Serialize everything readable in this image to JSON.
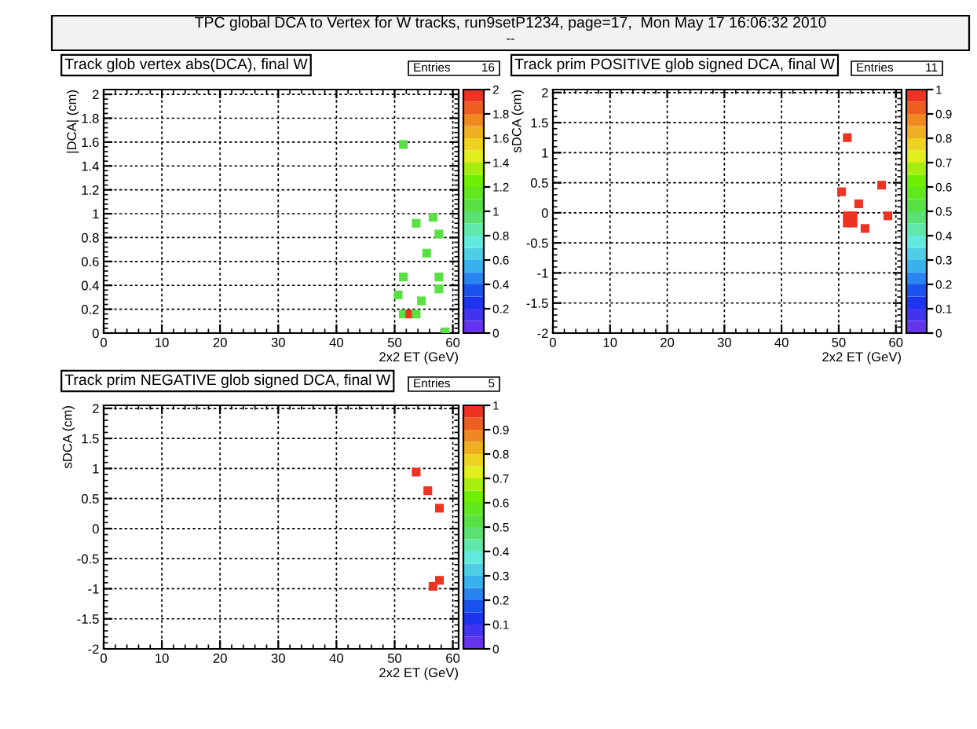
{
  "chart_data": [
    {
      "type": "other",
      "title": "TPC global DCA to Vertex for W tracks, run9setP1234, page=17,  Mon May 17 16:06:32 2010",
      "annotations": [
        "--"
      ]
    },
    {
      "type": "scatter",
      "title": "Track glob vertex abs(DCA), final W",
      "xlabel": "2x2 ET (GeV)",
      "ylabel": "|DCA| (cm)",
      "marker": "square",
      "grid": true,
      "x": [
        51.5,
        56.6,
        53.7,
        57.6,
        55.5,
        51.5,
        57.6,
        57.6,
        50.6,
        54.6,
        51.5,
        52.6,
        53.7,
        58.7
      ],
      "values": [
        1.58,
        0.97,
        0.92,
        0.83,
        0.67,
        0.47,
        0.47,
        0.37,
        0.32,
        0.27,
        0.16,
        0.16,
        0.16,
        0.01
      ],
      "cvalues": [
        1,
        1,
        1,
        1,
        1,
        1,
        1,
        1,
        1,
        1,
        1,
        2,
        1,
        1
      ],
      "xlim": [
        0,
        61
      ],
      "ylim": [
        0,
        2.04
      ],
      "xticks": [
        0,
        10,
        20,
        30,
        40,
        50,
        60
      ],
      "yticks": [
        0,
        0.2,
        0.4,
        0.6,
        0.8,
        1,
        1.2,
        1.4,
        1.6,
        1.8,
        2
      ],
      "clim": [
        0,
        2
      ],
      "cticks": [
        0,
        0.2,
        0.4,
        0.6,
        0.8,
        1,
        1.2,
        1.4,
        1.6,
        1.8,
        2
      ],
      "annotations": [
        "Entries",
        "16"
      ]
    },
    {
      "type": "scatter",
      "title": "Track prim POSITIVE glob signed DCA, final W",
      "xlabel": "2x2 ET (GeV)",
      "ylabel": "sDCA (cm)",
      "marker": "square",
      "grid": true,
      "x": [
        51.5,
        50.5,
        57.5,
        53.5,
        51.5,
        52.5,
        51.5,
        52.5,
        54.6,
        58.6
      ],
      "values": [
        1.25,
        0.35,
        0.46,
        0.15,
        -0.05,
        -0.05,
        -0.17,
        -0.17,
        -0.26,
        -0.05
      ],
      "cvalues": [
        1,
        1,
        1,
        1,
        1,
        1,
        1,
        1,
        1,
        1
      ],
      "xlim": [
        0,
        61
      ],
      "ylim": [
        -2,
        2.05
      ],
      "xticks": [
        0,
        10,
        20,
        30,
        40,
        50,
        60
      ],
      "yticks": [
        -2,
        -1.5,
        -1,
        -0.5,
        0,
        0.5,
        1,
        1.5,
        2
      ],
      "clim": [
        0,
        1
      ],
      "cticks": [
        0,
        0.1,
        0.2,
        0.3,
        0.4,
        0.5,
        0.6,
        0.7,
        0.8,
        0.9,
        1
      ],
      "annotations": [
        "Entries",
        "11"
      ]
    },
    {
      "type": "scatter",
      "title": "Track prim NEGATIVE glob signed DCA, final W",
      "xlabel": "2x2 ET (GeV)",
      "ylabel": "sDCA (cm)",
      "marker": "square",
      "grid": true,
      "x": [
        53.7,
        55.7,
        57.7,
        57.7,
        56.6
      ],
      "values": [
        0.94,
        0.63,
        0.34,
        -0.86,
        -0.96
      ],
      "cvalues": [
        1,
        1,
        1,
        1,
        1
      ],
      "xlim": [
        0,
        61
      ],
      "ylim": [
        -2,
        2.05
      ],
      "xticks": [
        0,
        10,
        20,
        30,
        40,
        50,
        60
      ],
      "yticks": [
        -2,
        -1.5,
        -1,
        -0.5,
        0,
        0.5,
        1,
        1.5,
        2
      ],
      "clim": [
        0,
        1
      ],
      "cticks": [
        0,
        0.1,
        0.2,
        0.3,
        0.4,
        0.5,
        0.6,
        0.7,
        0.8,
        0.9,
        1
      ],
      "annotations": [
        "Entries",
        "5"
      ]
    }
  ]
}
